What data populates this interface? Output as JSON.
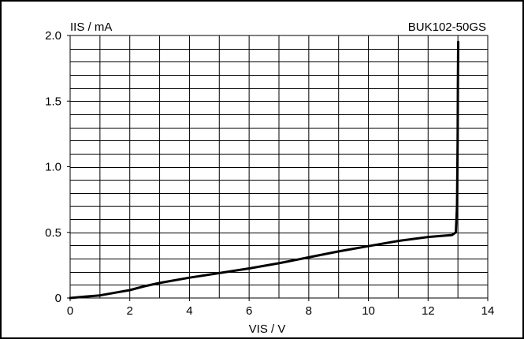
{
  "chart_data": {
    "type": "line",
    "ylabel": "IIS / mA",
    "xlabel": "VIS / V",
    "annotation": "BUK102-50GS",
    "xlim": [
      0,
      14
    ],
    "ylim": [
      0,
      2.0
    ],
    "x_ticks": [
      0,
      2,
      4,
      6,
      8,
      10,
      12,
      14
    ],
    "x_tick_labels": [
      "0",
      "2",
      "4",
      "6",
      "8",
      "10",
      "12",
      "14"
    ],
    "y_ticks": [
      0,
      0.5,
      1.0,
      1.5,
      2.0
    ],
    "y_tick_labels": [
      "0",
      "0.5",
      "1.0",
      "1.5",
      "2.0"
    ],
    "grid": true,
    "x_minor_grid_step": 1,
    "y_minor_grid_step": 0.1,
    "series": [
      {
        "color": "#000000",
        "points": [
          [
            0,
            0.0
          ],
          [
            0.5,
            0.01
          ],
          [
            1,
            0.02
          ],
          [
            1.5,
            0.04
          ],
          [
            2,
            0.06
          ],
          [
            2.5,
            0.09
          ],
          [
            3,
            0.115
          ],
          [
            4,
            0.155
          ],
          [
            5,
            0.19
          ],
          [
            6,
            0.225
          ],
          [
            7,
            0.265
          ],
          [
            8,
            0.31
          ],
          [
            9,
            0.355
          ],
          [
            10,
            0.395
          ],
          [
            11,
            0.435
          ],
          [
            12,
            0.465
          ],
          [
            12.8,
            0.48
          ],
          [
            12.93,
            0.5
          ],
          [
            12.97,
            0.7
          ],
          [
            12.99,
            1.2
          ],
          [
            13.0,
            1.6
          ],
          [
            13.01,
            1.95
          ]
        ]
      }
    ]
  }
}
